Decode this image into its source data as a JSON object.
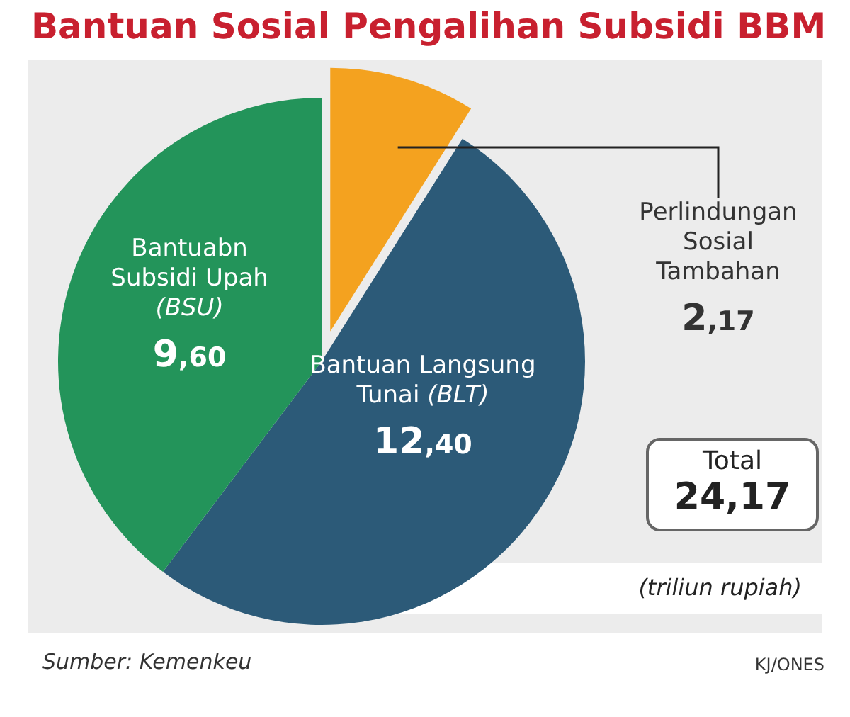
{
  "chart_data": {
    "type": "pie",
    "title": "Bantuan Sosial Pengalihan Subsidi BBM",
    "categories": [
      "Perlindungan\nSosial\nTambahan",
      "Bantuan Langsung\nTunai (BLT)",
      "Bantuabn\nSubsidi Upah\n(BSU)"
    ],
    "values": [
      2.17,
      12.4,
      9.6
    ],
    "value_labels": [
      "2,17",
      "12,40",
      "9,60"
    ],
    "colors": [
      "#f4a21f",
      "#2c5a78",
      "#23945a"
    ],
    "annotations": [
      "Total",
      "24,17",
      "(triliun rupiah)",
      "Sumber: Kemenkeu",
      "KJ/ONES"
    ]
  }
}
